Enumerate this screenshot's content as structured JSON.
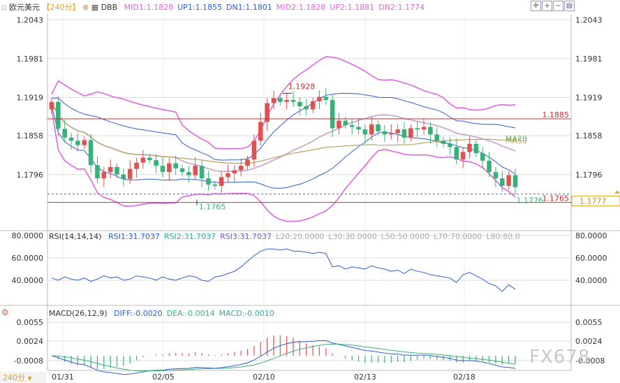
{
  "header": {
    "symbol": "欧元美元",
    "period": "【240分】",
    "indicator": "DBB",
    "bands": [
      {
        "label": "MID1:1.1828",
        "color": "#e066e0"
      },
      {
        "label": "UP1:1.1855",
        "color": "#2f5fd0"
      },
      {
        "label": "DN1:1.1801",
        "color": "#2f5fd0"
      },
      {
        "label": "MID2:1.1828",
        "color": "#e066e0"
      },
      {
        "label": "UP2:1.1881",
        "color": "#e066e0"
      },
      {
        "label": "DN2:1.1774",
        "color": "#e066e0"
      }
    ]
  },
  "toolbar_icons": [
    "crosshair-icon",
    "zoom-in-icon",
    "zoom-out-icon",
    "settings-icon"
  ],
  "colors": {
    "up": "#e05050",
    "down": "#38b07a",
    "mid": "#e066e0",
    "band": "#2f5fd0",
    "ma20": "#c8a0c8",
    "ma50": "#b8a060"
  },
  "chart_data": [
    {
      "type": "candlestick",
      "title": "欧元美元",
      "y_ticks": [
        "1.2043",
        "1.1981",
        "1.1919",
        "1.1858",
        "1.1796"
      ],
      "x_ticks": [
        "01/31",
        "02/05",
        "02/10",
        "02/13",
        "02/18"
      ],
      "annotations": {
        "high": "1.1928",
        "low": "1.1765",
        "last": "1.1776",
        "line_high": "1.1885",
        "line_low": "1.1765",
        "price_tag": "1.1777",
        "ma50_label": "MA50",
        "ma20_label": "MA20"
      },
      "closes": [
        1.1912,
        1.1869,
        1.1855,
        1.185,
        1.1843,
        1.1851,
        1.1811,
        1.179,
        1.18,
        1.1808,
        1.1796,
        1.1789,
        1.1805,
        1.1815,
        1.1823,
        1.1819,
        1.181,
        1.18,
        1.1814,
        1.1806,
        1.18,
        1.1795,
        1.181,
        1.179,
        1.178,
        1.1778,
        1.1792,
        1.1798,
        1.1803,
        1.181,
        1.182,
        1.185,
        1.188,
        1.191,
        1.1918,
        1.1912,
        1.1915,
        1.1912,
        1.1905,
        1.19,
        1.1913,
        1.192,
        1.1915,
        1.187,
        1.1882,
        1.1875,
        1.1872,
        1.1868,
        1.186,
        1.1876,
        1.1865,
        1.186,
        1.1862,
        1.1868,
        1.1855,
        1.187,
        1.1868,
        1.1872,
        1.186,
        1.185,
        1.1845,
        1.184,
        1.182,
        1.1832,
        1.1845,
        1.183,
        1.1818,
        1.18,
        1.179,
        1.1778,
        1.1795,
        1.1776
      ]
    },
    {
      "type": "line",
      "title": "RSI(14,14,14)",
      "legend": [
        "RSI1:31.7037",
        "RSI2:31.7037",
        "RSI3:31.7037",
        "L20:20.0000",
        "L30:30.0000",
        "L50:50.0000",
        "L70:70.0000",
        "L80:80.0"
      ],
      "y_ticks": [
        "80.0000",
        "60.0000",
        "40.0000"
      ],
      "values": [
        42,
        40,
        43,
        41,
        40,
        42,
        39,
        41,
        44,
        42,
        43,
        40,
        41,
        44,
        43,
        42,
        40,
        43,
        41,
        40,
        42,
        44,
        43,
        40,
        39,
        43,
        44,
        46,
        48,
        52,
        57,
        62,
        66,
        68,
        68,
        67,
        68,
        66,
        66,
        65,
        64,
        65,
        64,
        52,
        53,
        50,
        52,
        51,
        50,
        53,
        51,
        50,
        48,
        49,
        46,
        50,
        48,
        47,
        45,
        44,
        43,
        42,
        38,
        45,
        47,
        44,
        41,
        37,
        35,
        30,
        36,
        32
      ]
    },
    {
      "type": "bar",
      "title": "MACD(26,12,9)",
      "legend": [
        "DIFF:-0.0020",
        "DEA:-0.0014",
        "MACD:-0.0010"
      ],
      "y_ticks": [
        "0.0055",
        "0.0024",
        "-0.0008"
      ]
    }
  ],
  "footer": {
    "period_selector": "240分"
  },
  "watermark": "FX678"
}
